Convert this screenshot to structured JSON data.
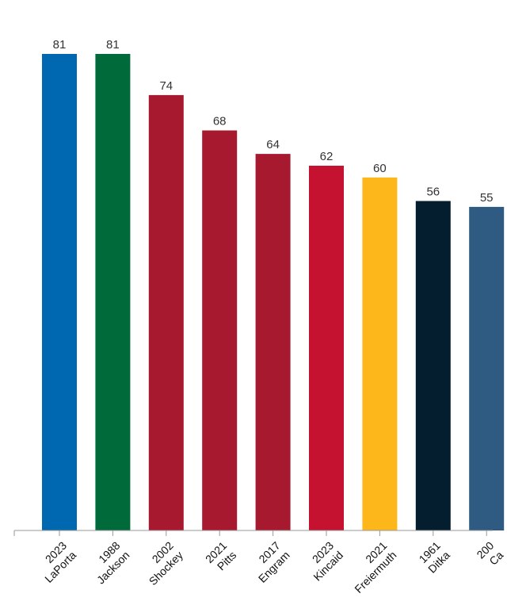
{
  "chart_data": {
    "type": "bar",
    "title": "",
    "xlabel": "",
    "ylabel": "",
    "ylim": [
      0,
      81
    ],
    "grid": false,
    "legend": "none",
    "categories": [
      {
        "year": "2023",
        "name": "LaPorta"
      },
      {
        "year": "1988",
        "name": "Jackson"
      },
      {
        "year": "2002",
        "name": "Shockey"
      },
      {
        "year": "2021",
        "name": "Pitts"
      },
      {
        "year": "2017",
        "name": "Engram"
      },
      {
        "year": "2023",
        "name": "Kincaid"
      },
      {
        "year": "2021",
        "name": "Freiermuth"
      },
      {
        "year": "1961",
        "name": "Ditka"
      },
      {
        "year": "200",
        "name": "Ca"
      }
    ],
    "values": [
      81,
      81,
      74,
      68,
      64,
      62,
      60,
      56,
      55
    ],
    "colors": [
      "#0068b1",
      "#006a3b",
      "#a6192e",
      "#a6192e",
      "#a6192e",
      "#c41230",
      "#fdb71a",
      "#041e30",
      "#2f5a81"
    ]
  }
}
